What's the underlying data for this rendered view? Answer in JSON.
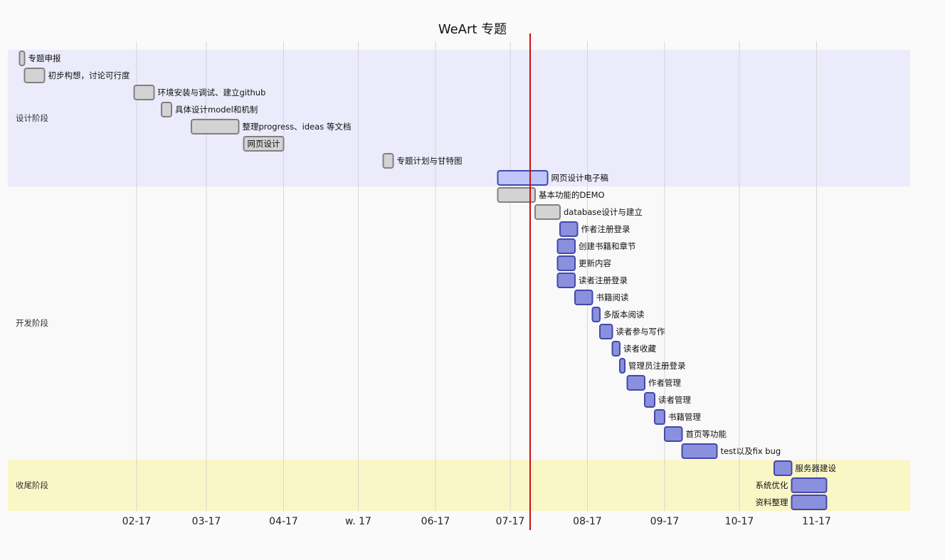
{
  "chart_data": {
    "type": "gantt",
    "title": "WeArt 专题",
    "x_ticks": [
      "02-17",
      "03-17",
      "04-17",
      "w. 17",
      "06-17",
      "07-17",
      "08-17",
      "09-17",
      "10-17",
      "11-17"
    ],
    "today": "2017-07-25",
    "sections": [
      {
        "name": "设计阶段",
        "color": "#ebebfb"
      },
      {
        "name": "开发阶段",
        "color": "#f9f9f9"
      },
      {
        "name": "收尾阶段",
        "color": "#faf7c7"
      }
    ],
    "status_colors": {
      "done": {
        "fill": "#d3d3d3",
        "stroke": "#808080"
      },
      "active": {
        "fill": "#bfc5fd",
        "stroke": "#4448aa"
      },
      "planned": {
        "fill": "#8a90dd",
        "stroke": "#4448aa"
      }
    },
    "tasks": [
      {
        "name": "专题申报",
        "section": 0,
        "start": "2017-01-01",
        "end": "2017-01-03",
        "status": "done",
        "label_pos": "right"
      },
      {
        "name": "初步构想，讨论可行度",
        "section": 0,
        "start": "2017-01-03",
        "end": "2017-01-11",
        "status": "done",
        "label_pos": "right"
      },
      {
        "name": "环境安装与调试、建立github",
        "section": 0,
        "start": "2017-02-16",
        "end": "2017-02-24",
        "status": "done",
        "label_pos": "right"
      },
      {
        "name": "具体设计model和机制",
        "section": 0,
        "start": "2017-02-27",
        "end": "2017-03-03",
        "status": "done",
        "label_pos": "right"
      },
      {
        "name": "整理progress、ideas 等文档",
        "section": 0,
        "start": "2017-03-11",
        "end": "2017-03-30",
        "status": "done",
        "label_pos": "right"
      },
      {
        "name": "网页设计",
        "section": 0,
        "start": "2017-04-01",
        "end": "2017-04-17",
        "status": "done",
        "label_pos": "inside"
      },
      {
        "name": "专题计划与甘特图",
        "section": 0,
        "start": "2017-05-27",
        "end": "2017-05-31",
        "status": "done",
        "label_pos": "right"
      },
      {
        "name": "网页设计电子稿",
        "section": 0,
        "start": "2017-07-12",
        "end": "2017-08-01",
        "status": "active",
        "label_pos": "right"
      },
      {
        "name": "基本功能的DEMO",
        "section": 1,
        "start": "2017-07-12",
        "end": "2017-07-27",
        "status": "done",
        "label_pos": "right"
      },
      {
        "name": "database设计与建立",
        "section": 1,
        "start": "2017-07-27",
        "end": "2017-08-06",
        "status": "done",
        "label_pos": "right"
      },
      {
        "name": "作者注册登录",
        "section": 1,
        "start": "2017-08-06",
        "end": "2017-08-13",
        "status": "planned",
        "label_pos": "right"
      },
      {
        "name": "创建书籍和章节",
        "section": 1,
        "start": "2017-08-05",
        "end": "2017-08-12",
        "status": "planned",
        "label_pos": "right"
      },
      {
        "name": "更新内容",
        "section": 1,
        "start": "2017-08-05",
        "end": "2017-08-12",
        "status": "planned",
        "label_pos": "right"
      },
      {
        "name": "读者注册登录",
        "section": 1,
        "start": "2017-08-05",
        "end": "2017-08-12",
        "status": "planned",
        "label_pos": "right"
      },
      {
        "name": "书籍阅读",
        "section": 1,
        "start": "2017-08-12",
        "end": "2017-08-19",
        "status": "planned",
        "label_pos": "right"
      },
      {
        "name": "多版本阅读",
        "section": 1,
        "start": "2017-08-19",
        "end": "2017-08-22",
        "status": "planned",
        "label_pos": "right"
      },
      {
        "name": "读者参与写作",
        "section": 1,
        "start": "2017-08-22",
        "end": "2017-08-27",
        "status": "planned",
        "label_pos": "right"
      },
      {
        "name": "读者收藏",
        "section": 1,
        "start": "2017-08-27",
        "end": "2017-08-30",
        "status": "planned",
        "label_pos": "right"
      },
      {
        "name": "管理员注册登录",
        "section": 1,
        "start": "2017-08-30",
        "end": "2017-09-01",
        "status": "planned",
        "label_pos": "right"
      },
      {
        "name": "作者管理",
        "section": 1,
        "start": "2017-09-02",
        "end": "2017-09-09",
        "status": "planned",
        "label_pos": "right"
      },
      {
        "name": "读者管理",
        "section": 1,
        "start": "2017-09-09",
        "end": "2017-09-13",
        "status": "planned",
        "label_pos": "right"
      },
      {
        "name": "书籍管理",
        "section": 1,
        "start": "2017-09-13",
        "end": "2017-09-17",
        "status": "planned",
        "label_pos": "right"
      },
      {
        "name": "首页等功能",
        "section": 1,
        "start": "2017-09-17",
        "end": "2017-09-24",
        "status": "planned",
        "label_pos": "right"
      },
      {
        "name": "test以及fix bug",
        "section": 1,
        "start": "2017-09-24",
        "end": "2017-10-08",
        "status": "planned",
        "label_pos": "right"
      },
      {
        "name": "服务器建设",
        "section": 2,
        "start": "2017-10-31",
        "end": "2017-11-07",
        "status": "planned",
        "label_pos": "right"
      },
      {
        "name": "系统优化",
        "section": 2,
        "start": "2017-11-07",
        "end": "2017-11-21",
        "status": "planned",
        "label_pos": "left"
      },
      {
        "name": "资料整理",
        "section": 2,
        "start": "2017-11-07",
        "end": "2017-11-21",
        "status": "planned",
        "label_pos": "left"
      }
    ]
  }
}
